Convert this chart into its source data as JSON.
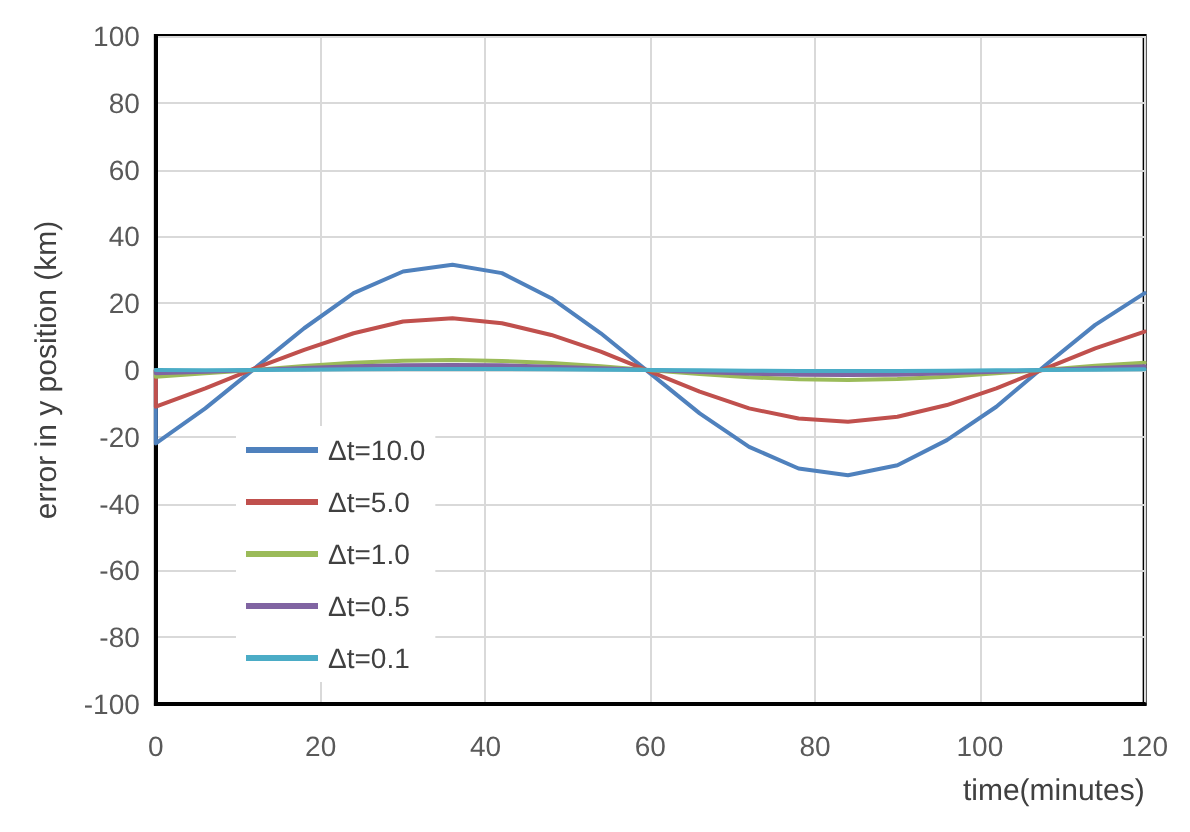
{
  "chart_data": {
    "type": "line",
    "xlabel": "time(minutes)",
    "ylabel": "error in y position (km)",
    "x": [
      0,
      0,
      6,
      12,
      18,
      24,
      30,
      36,
      42,
      48,
      54,
      60,
      66,
      72,
      78,
      84,
      90,
      96,
      102,
      108,
      114,
      120
    ],
    "series": [
      {
        "name": "Δt=10.0",
        "color": "#4f81bd",
        "values": [
          0,
          -22,
          -11.5,
          0.5,
          12.5,
          23,
          29.5,
          31.5,
          29,
          21.5,
          11,
          -1,
          -13,
          -23,
          -29.5,
          -31.5,
          -28.5,
          -21,
          -11,
          1.5,
          13.5,
          23
        ]
      },
      {
        "name": "Δt=5.0",
        "color": "#c0504d",
        "values": [
          0,
          -11,
          -5.5,
          0.5,
          6,
          11,
          14.5,
          15.5,
          14,
          10.5,
          5.5,
          -0.5,
          -6.5,
          -11.5,
          -14.5,
          -15.5,
          -14,
          -10.5,
          -5.5,
          0.5,
          6.5,
          11.5
        ]
      },
      {
        "name": "Δt=1.0",
        "color": "#9bbb59",
        "values": [
          0,
          -2,
          -1,
          0,
          1.2,
          2.2,
          2.8,
          3,
          2.7,
          2.1,
          1.1,
          -0.1,
          -1.2,
          -2.2,
          -2.8,
          -3,
          -2.7,
          -2,
          -1,
          0.1,
          1.3,
          2.2
        ]
      },
      {
        "name": "Δt=0.5",
        "color": "#8064a2",
        "values": [
          0,
          -1,
          -0.5,
          0,
          0.6,
          1.1,
          1.4,
          1.5,
          1.4,
          1,
          0.5,
          0,
          -0.6,
          -1.1,
          -1.4,
          -1.5,
          -1.4,
          -1,
          -0.5,
          0,
          0.6,
          1.1
        ]
      },
      {
        "name": "Δt=0.1",
        "color": "#4bacc6",
        "values": [
          0,
          -0.2,
          -0.1,
          0,
          0.1,
          0.2,
          0.3,
          0.3,
          0.3,
          0.2,
          0.1,
          0,
          -0.1,
          -0.2,
          -0.3,
          -0.3,
          -0.3,
          -0.2,
          -0.1,
          0,
          0.1,
          0.2
        ]
      }
    ],
    "xlim": [
      0,
      120
    ],
    "xticks": [
      0,
      20,
      40,
      60,
      80,
      100,
      120
    ],
    "ylim": [
      -100,
      100
    ],
    "yticks": [
      -100,
      -80,
      -60,
      -40,
      -20,
      0,
      20,
      40,
      60,
      80,
      100
    ],
    "grid": true,
    "legend": "bottom left",
    "marker": "none",
    "line_style": "solid"
  }
}
